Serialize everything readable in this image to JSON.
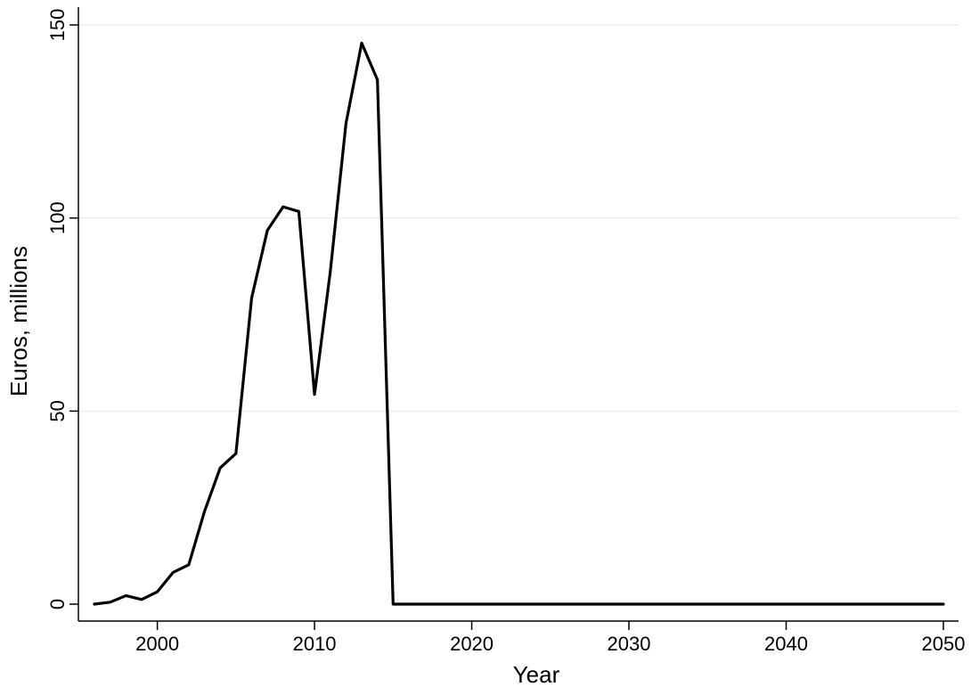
{
  "chart_data": {
    "type": "line",
    "title": "",
    "xlabel": "Year",
    "ylabel": "Euros, millions",
    "xlim": [
      1996,
      2050
    ],
    "ylim": [
      0,
      150
    ],
    "x_ticks": [
      2000,
      2010,
      2020,
      2030,
      2040,
      2050
    ],
    "y_ticks": [
      0,
      50,
      100,
      150
    ],
    "grid": "horizontal",
    "legend": "none",
    "line_color": "#000000",
    "grid_color": "#e6eef2",
    "series": [
      {
        "x": [
          1996,
          1997,
          1998,
          1999,
          2000,
          2001,
          2002,
          2003,
          2004,
          2005,
          2006,
          2007,
          2008,
          2009,
          2010,
          2011,
          2012,
          2013,
          2014,
          2015,
          2016,
          2017,
          2018,
          2019,
          2020,
          2021,
          2022,
          2023,
          2024,
          2025,
          2026,
          2027,
          2028,
          2029,
          2030,
          2031,
          2032,
          2033,
          2034,
          2035,
          2036,
          2037,
          2038,
          2039,
          2040,
          2041,
          2042,
          2043,
          2044,
          2045,
          2046,
          2047,
          2048,
          2049,
          2050
        ],
        "values": [
          0,
          0.5,
          2.2,
          1.2,
          3.2,
          8.2,
          10.2,
          24,
          35.3,
          39,
          79.3,
          96.8,
          102.9,
          101.7,
          54.3,
          86,
          124.5,
          145.3,
          135.8,
          0,
          0,
          0,
          0,
          0,
          0,
          0,
          0,
          0,
          0,
          0,
          0,
          0,
          0,
          0,
          0,
          0,
          0,
          0,
          0,
          0,
          0,
          0,
          0,
          0,
          0,
          0,
          0,
          0,
          0,
          0,
          0,
          0,
          0,
          0,
          0
        ]
      }
    ]
  }
}
